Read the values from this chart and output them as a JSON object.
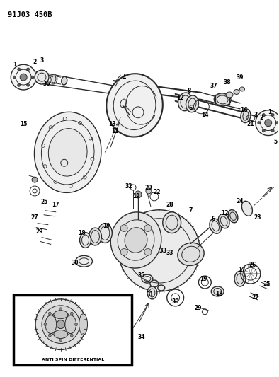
{
  "title": "91J03 450B",
  "bg_color": "#ffffff",
  "line_color": "#2a2a2a",
  "fig_width": 3.94,
  "fig_height": 5.33,
  "dpi": 100
}
